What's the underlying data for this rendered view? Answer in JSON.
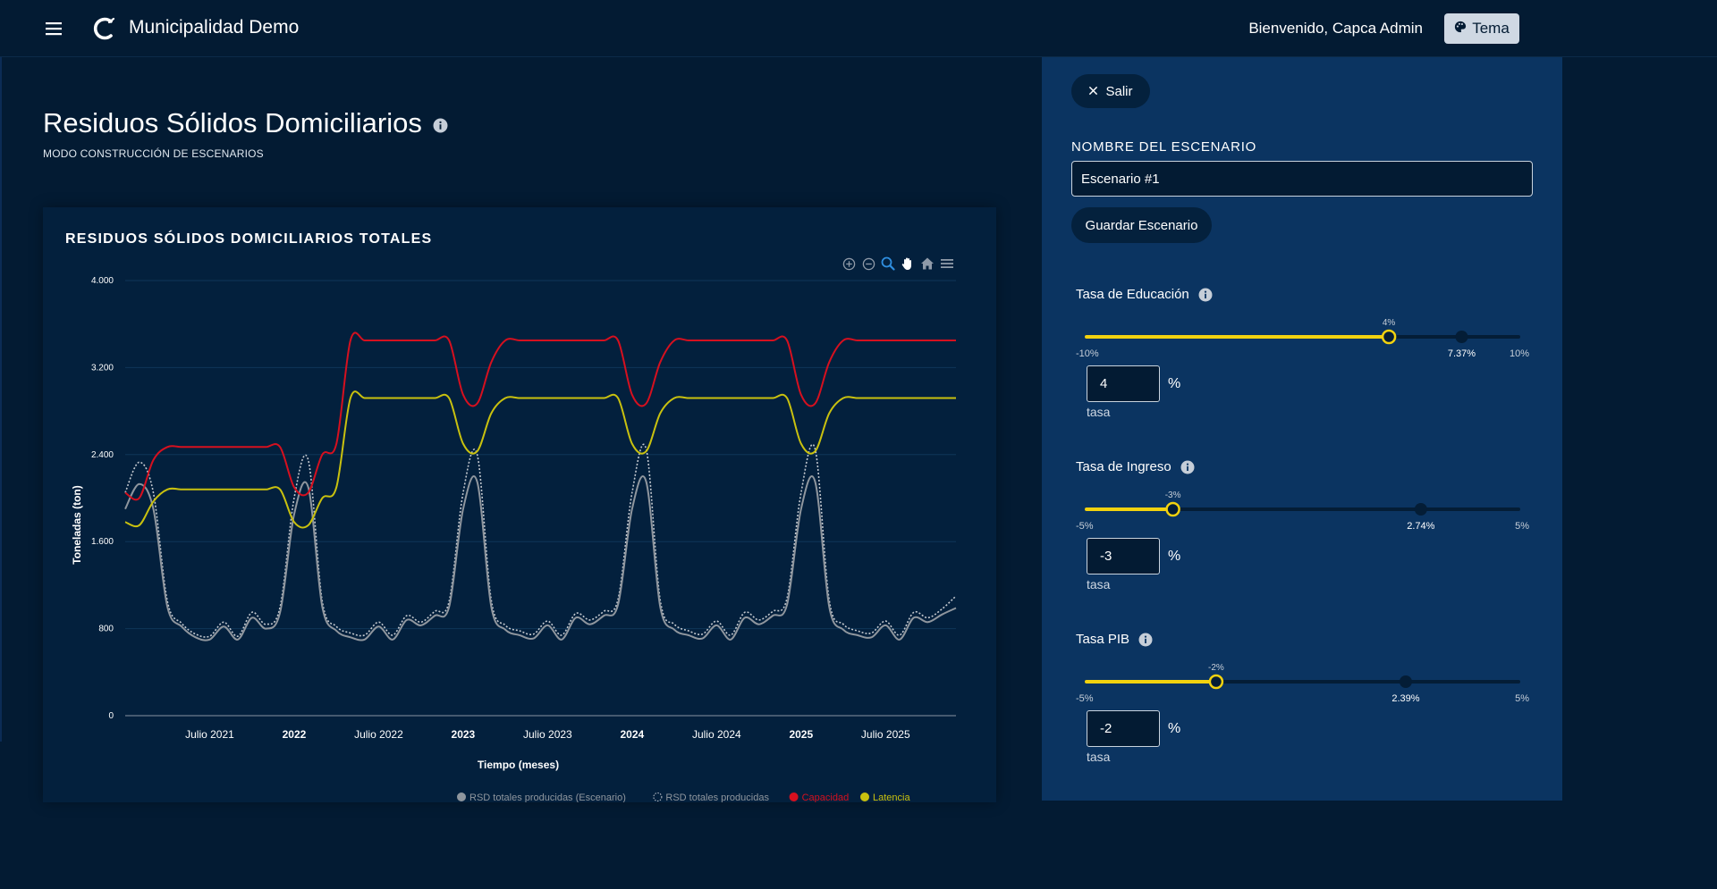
{
  "header": {
    "app_title": "Municipalidad Demo",
    "welcome": "Bienvenido, Capca Admin",
    "theme_label": "Tema"
  },
  "page": {
    "title": "Residuos Sólidos Domiciliarios",
    "subtitle": "MODO CONSTRUCCIÓN DE ESCENARIOS"
  },
  "panel": {
    "exit_label": "Salir",
    "name_label": "NOMBRE DEL ESCENARIO",
    "name_value": "Escenario #1",
    "save_label": "Guardar Escenario",
    "params": [
      {
        "label": "Tasa de Educación",
        "min_label": "-10%",
        "max_label": "10%",
        "min": -10,
        "max": 10,
        "value": 4,
        "value_label": "4%",
        "reference": 7.37,
        "reference_label": "7.37%",
        "input_value": "4",
        "unit": "%",
        "caption": "tasa"
      },
      {
        "label": "Tasa de Ingreso",
        "min_label": "-5%",
        "max_label": "5%",
        "min": -5,
        "max": 5,
        "value": -3,
        "value_label": "-3%",
        "reference": 2.74,
        "reference_label": "2.74%",
        "input_value": "-3",
        "unit": "%",
        "caption": "tasa"
      },
      {
        "label": "Tasa PIB",
        "min_label": "-5%",
        "max_label": "5%",
        "min": -5,
        "max": 5,
        "value": -2,
        "value_label": "-2%",
        "reference": 2.39,
        "reference_label": "2.39%",
        "input_value": "-2",
        "unit": "%",
        "caption": "tasa"
      }
    ]
  },
  "colors": {
    "background": "#031b33",
    "card": "#03203d",
    "panel": "#0b3461",
    "slider_active": "#f2d20f",
    "slider_track": "#041d36",
    "series_capacidad": "#d6101f",
    "series_latencia": "#c9c10f",
    "series_escenario": "#8f969e",
    "series_producidas": "#c3c8cf"
  },
  "icons": {
    "menu": "hamburger-menu-icon",
    "logo": "c-logo-icon",
    "theme": "palette-icon",
    "info": "info-icon",
    "close": "close-icon",
    "toolbar": [
      "zoom-in-icon",
      "zoom-out-icon",
      "selection-zoom-icon",
      "pan-hand-icon",
      "reset-home-icon",
      "chart-menu-icon"
    ]
  },
  "chart_data": {
    "type": "line",
    "title": "RESIDUOS SÓLIDOS DOMICILIARIOS TOTALES",
    "xlabel": "Tiempo (meses)",
    "ylabel": "Toneladas (ton)",
    "ylim": [
      0,
      4000
    ],
    "yticks": [
      0,
      800,
      1600,
      2400,
      3200,
      4000
    ],
    "ytick_labels": [
      "0",
      "800",
      "1.600",
      "2.400",
      "3.200",
      "4.000"
    ],
    "x_start": "2021-01",
    "x_end": "2025-12",
    "xticks": [
      {
        "month_index": 6,
        "label": "Julio 2021",
        "bold": false
      },
      {
        "month_index": 12,
        "label": "2022",
        "bold": true
      },
      {
        "month_index": 18,
        "label": "Julio 2022",
        "bold": false
      },
      {
        "month_index": 24,
        "label": "2023",
        "bold": true
      },
      {
        "month_index": 30,
        "label": "Julio 2023",
        "bold": false
      },
      {
        "month_index": 36,
        "label": "2024",
        "bold": true
      },
      {
        "month_index": 42,
        "label": "Julio 2024",
        "bold": false
      },
      {
        "month_index": 48,
        "label": "2025",
        "bold": true
      },
      {
        "month_index": 54,
        "label": "Julio 2025",
        "bold": false
      }
    ],
    "grid": true,
    "legend_position": "bottom-right",
    "series": [
      {
        "name": "RSD totales producidas (Escenario)",
        "color": "#8f969e",
        "style": "solid",
        "values": [
          1900,
          2130,
          1900,
          1000,
          820,
          720,
          700,
          820,
          700,
          900,
          800,
          950,
          1850,
          2100,
          1000,
          780,
          720,
          700,
          820,
          700,
          880,
          830,
          920,
          1000,
          1900,
          2150,
          1000,
          790,
          740,
          710,
          830,
          700,
          900,
          840,
          920,
          1020,
          1900,
          2150,
          1000,
          790,
          740,
          710,
          830,
          700,
          900,
          840,
          920,
          1020,
          1900,
          2150,
          1000,
          790,
          740,
          720,
          830,
          700,
          900,
          860,
          930,
          990
        ]
      },
      {
        "name": "RSD totales producidas",
        "color": "#c3c8cf",
        "style": "dotted",
        "values": [
          2050,
          2330,
          2050,
          1050,
          850,
          750,
          730,
          860,
          730,
          950,
          840,
          1000,
          2000,
          2350,
          1050,
          820,
          760,
          740,
          860,
          740,
          920,
          860,
          960,
          1050,
          2050,
          2400,
          1060,
          830,
          780,
          750,
          870,
          740,
          940,
          880,
          960,
          1070,
          2050,
          2450,
          1060,
          840,
          780,
          750,
          870,
          740,
          950,
          880,
          960,
          1080,
          2050,
          2450,
          1060,
          840,
          780,
          760,
          870,
          740,
          950,
          900,
          980,
          1100
        ]
      },
      {
        "name": "Capacidad",
        "color": "#d6101f",
        "style": "solid",
        "values": [
          2050,
          2000,
          2350,
          2470,
          2470,
          2470,
          2470,
          2470,
          2470,
          2470,
          2470,
          2470,
          2100,
          2050,
          2400,
          2500,
          3450,
          3450,
          3450,
          3450,
          3450,
          3450,
          3450,
          3450,
          2950,
          2870,
          3250,
          3450,
          3450,
          3450,
          3450,
          3450,
          3450,
          3450,
          3450,
          3450,
          2950,
          2870,
          3250,
          3450,
          3450,
          3450,
          3450,
          3450,
          3450,
          3450,
          3450,
          3450,
          2950,
          2870,
          3250,
          3450,
          3450,
          3450,
          3450,
          3450,
          3450,
          3450,
          3450,
          3450
        ]
      },
      {
        "name": "Latencia",
        "color": "#c9c10f",
        "style": "solid",
        "values": [
          1780,
          1750,
          1970,
          2080,
          2080,
          2080,
          2080,
          2080,
          2080,
          2080,
          2080,
          2080,
          1780,
          1750,
          2000,
          2100,
          2920,
          2920,
          2920,
          2920,
          2920,
          2920,
          2920,
          2920,
          2500,
          2430,
          2780,
          2920,
          2920,
          2920,
          2920,
          2920,
          2920,
          2920,
          2920,
          2920,
          2500,
          2430,
          2780,
          2920,
          2920,
          2920,
          2920,
          2920,
          2920,
          2920,
          2920,
          2920,
          2500,
          2430,
          2780,
          2920,
          2920,
          2920,
          2920,
          2920,
          2920,
          2920,
          2920,
          2920
        ]
      }
    ]
  }
}
